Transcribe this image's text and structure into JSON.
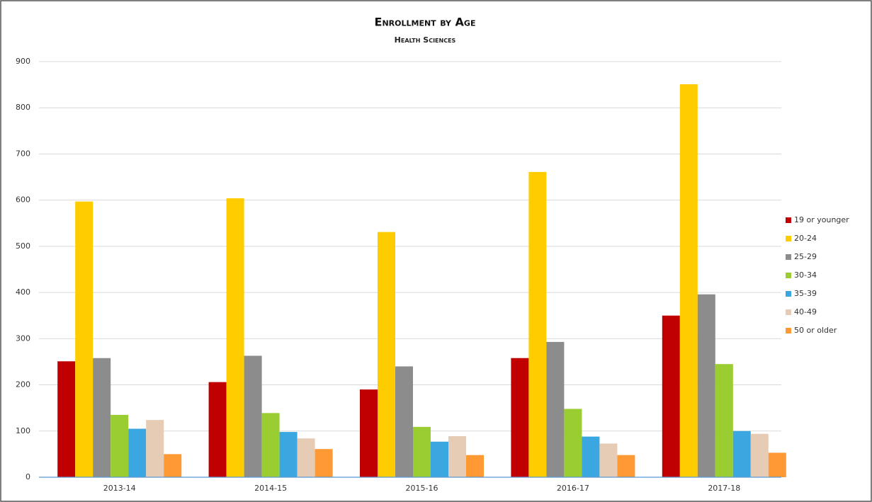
{
  "chart_data": {
    "type": "bar",
    "title": "Enrollment by Age",
    "subtitle": "Health Sciences",
    "categories": [
      "2013-14",
      "2014-15",
      "2015-16",
      "2016-17",
      "2017-18"
    ],
    "series": [
      {
        "name": "19 or younger",
        "color": "#c00000",
        "values": [
          251,
          206,
          190,
          258,
          350
        ]
      },
      {
        "name": "20-24",
        "color": "#ffcc00",
        "values": [
          597,
          604,
          531,
          661,
          851
        ]
      },
      {
        "name": "25-29",
        "color": "#8c8c8c",
        "values": [
          258,
          263,
          240,
          293,
          396
        ]
      },
      {
        "name": "30-34",
        "color": "#9acd32",
        "values": [
          135,
          139,
          109,
          148,
          245
        ]
      },
      {
        "name": "35-39",
        "color": "#3ba7e0",
        "values": [
          105,
          98,
          77,
          88,
          100
        ]
      },
      {
        "name": "40-49",
        "color": "#e6cbb5",
        "values": [
          124,
          84,
          89,
          73,
          94
        ]
      },
      {
        "name": "50 or older",
        "color": "#ff9933",
        "values": [
          50,
          61,
          48,
          48,
          53
        ]
      }
    ],
    "ylim": [
      0,
      900
    ],
    "yticks": [
      0,
      100,
      200,
      300,
      400,
      500,
      600,
      700,
      800,
      900
    ],
    "grid": true,
    "legend": "right"
  }
}
